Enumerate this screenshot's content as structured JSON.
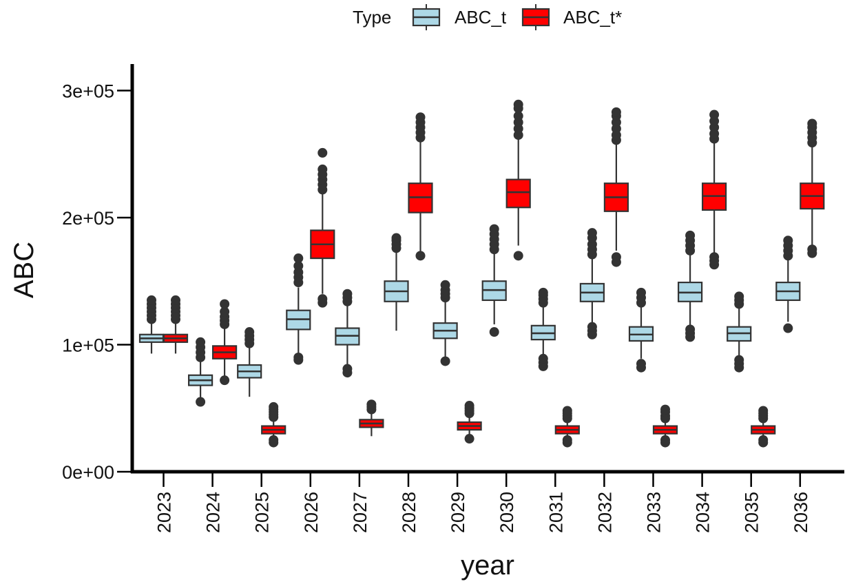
{
  "chart_data": {
    "type": "boxplot",
    "title": "",
    "xlabel": "year",
    "ylabel": "ABC",
    "ylim": [
      0,
      310000
    ],
    "y_ticks": [
      0,
      100000,
      200000,
      300000
    ],
    "y_tick_labels": [
      "0e+00",
      "1e+05",
      "2e+05",
      "3e+05"
    ],
    "categories": [
      "2023",
      "2024",
      "2025",
      "2026",
      "2027",
      "2028",
      "2029",
      "2030",
      "2031",
      "2032",
      "2033",
      "2034",
      "2035",
      "2036"
    ],
    "legend": {
      "title": "Type",
      "position": "top"
    },
    "series": [
      {
        "name": "ABC_t",
        "color": "#add8e6",
        "boxes": [
          {
            "x": "2023",
            "q1": 102000,
            "median": 105000,
            "q3": 108000,
            "whisker_low": 93000,
            "whisker_high": 117000,
            "outliers_low": [],
            "outliers_high": [
              120000,
              123000,
              126000,
              129000,
              132000,
              135000
            ]
          },
          {
            "x": "2024",
            "q1": 68000,
            "median": 72000,
            "q3": 76000,
            "whisker_low": 58000,
            "whisker_high": 88000,
            "outliers_low": [
              55000
            ],
            "outliers_high": [
              90000,
              94000,
              98000,
              102000
            ]
          },
          {
            "x": "2025",
            "q1": 74000,
            "median": 79000,
            "q3": 84000,
            "whisker_low": 59000,
            "whisker_high": 98000,
            "outliers_low": [],
            "outliers_high": [
              101000,
              104000,
              107000,
              110000
            ]
          },
          {
            "x": "2026",
            "q1": 112000,
            "median": 120000,
            "q3": 127000,
            "whisker_low": 93000,
            "whisker_high": 145000,
            "outliers_low": [
              88000,
              90000
            ],
            "outliers_high": [
              149000,
              153000,
              157000,
              162000,
              168000
            ]
          },
          {
            "x": "2027",
            "q1": 100000,
            "median": 107000,
            "q3": 113000,
            "whisker_low": 84000,
            "whisker_high": 131000,
            "outliers_low": [
              78000,
              81000
            ],
            "outliers_high": [
              134000,
              137000,
              140000
            ]
          },
          {
            "x": "2028",
            "q1": 134000,
            "median": 142000,
            "q3": 150000,
            "whisker_low": 111000,
            "whisker_high": 173000,
            "outliers_low": [],
            "outliers_high": [
              176000,
              179000,
              182000,
              184000
            ]
          },
          {
            "x": "2029",
            "q1": 105000,
            "median": 111000,
            "q3": 117000,
            "whisker_low": 90000,
            "whisker_high": 134000,
            "outliers_low": [
              87000
            ],
            "outliers_high": [
              137000,
              140000,
              143000,
              147000
            ]
          },
          {
            "x": "2030",
            "q1": 135000,
            "median": 143000,
            "q3": 150000,
            "whisker_low": 116000,
            "whisker_high": 172000,
            "outliers_low": [
              110000
            ],
            "outliers_high": [
              175000,
              179000,
              183000,
              187000,
              191000
            ]
          },
          {
            "x": "2031",
            "q1": 104000,
            "median": 109000,
            "q3": 115000,
            "whisker_low": 90000,
            "whisker_high": 130000,
            "outliers_low": [
              83000,
              86000,
              89000
            ],
            "outliers_high": [
              133000,
              136000,
              139000,
              141000
            ]
          },
          {
            "x": "2032",
            "q1": 134000,
            "median": 141000,
            "q3": 148000,
            "whisker_low": 116000,
            "whisker_high": 168000,
            "outliers_low": [
              108000,
              111000,
              114000
            ],
            "outliers_high": [
              171000,
              175000,
              179000,
              184000,
              188000
            ]
          },
          {
            "x": "2033",
            "q1": 103000,
            "median": 108000,
            "q3": 114000,
            "whisker_low": 89000,
            "whisker_high": 130000,
            "outliers_low": [
              82000,
              85000
            ],
            "outliers_high": [
              133000,
              137000,
              141000
            ]
          },
          {
            "x": "2034",
            "q1": 134000,
            "median": 141000,
            "q3": 149000,
            "whisker_low": 114000,
            "whisker_high": 171000,
            "outliers_low": [
              106000,
              109000,
              112000
            ],
            "outliers_high": [
              174000,
              178000,
              182000,
              186000
            ]
          },
          {
            "x": "2035",
            "q1": 103000,
            "median": 109000,
            "q3": 114000,
            "whisker_low": 89000,
            "whisker_high": 130000,
            "outliers_low": [
              82000,
              85000,
              88000
            ],
            "outliers_high": [
              132000,
              135000,
              138000
            ]
          },
          {
            "x": "2036",
            "q1": 135000,
            "median": 142000,
            "q3": 149000,
            "whisker_low": 118000,
            "whisker_high": 167000,
            "outliers_low": [
              113000
            ],
            "outliers_high": [
              170000,
              174000,
              178000,
              182000
            ]
          }
        ]
      },
      {
        "name": "ABC_t*",
        "color": "#ff0000",
        "boxes": [
          {
            "x": "2023",
            "q1": 102000,
            "median": 105000,
            "q3": 108000,
            "whisker_low": 93000,
            "whisker_high": 117000,
            "outliers_low": [],
            "outliers_high": [
              120000,
              123000,
              126000,
              129000,
              132000,
              135000
            ]
          },
          {
            "x": "2024",
            "q1": 89000,
            "median": 94000,
            "q3": 99000,
            "whisker_low": 75000,
            "whisker_high": 113000,
            "outliers_low": [
              72000
            ],
            "outliers_high": [
              116000,
              119000,
              122000,
              126000,
              132000
            ]
          },
          {
            "x": "2025",
            "q1": 30000,
            "median": 33000,
            "q3": 36000,
            "whisker_low": 27000,
            "whisker_high": 41000,
            "outliers_low": [
              23000,
              25000
            ],
            "outliers_high": [
              43000,
              45000,
              47000,
              49000,
              51000
            ]
          },
          {
            "x": "2026",
            "q1": 168000,
            "median": 179000,
            "q3": 190000,
            "whisker_low": 140000,
            "whisker_high": 219000,
            "outliers_low": [
              133000,
              136000
            ],
            "outliers_high": [
              222000,
              226000,
              230000,
              234000,
              238000,
              251000
            ]
          },
          {
            "x": "2027",
            "q1": 35000,
            "median": 38000,
            "q3": 41000,
            "whisker_low": 28000,
            "whisker_high": 47000,
            "outliers_low": [],
            "outliers_high": [
              49000,
              51000,
              53000
            ]
          },
          {
            "x": "2028",
            "q1": 204000,
            "median": 216000,
            "q3": 227000,
            "whisker_low": 172000,
            "whisker_high": 260000,
            "outliers_low": [
              170000
            ],
            "outliers_high": [
              263000,
              267000,
              271000,
              275000,
              279000
            ]
          },
          {
            "x": "2029",
            "q1": 33000,
            "median": 36000,
            "q3": 39000,
            "whisker_low": 29000,
            "whisker_high": 44000,
            "outliers_low": [
              26000
            ],
            "outliers_high": [
              46000,
              48000,
              50000,
              52000
            ]
          },
          {
            "x": "2030",
            "q1": 208000,
            "median": 220000,
            "q3": 230000,
            "whisker_low": 178000,
            "whisker_high": 262000,
            "outliers_low": [
              170000
            ],
            "outliers_high": [
              265000,
              270000,
              275000,
              280000,
              286000,
              289000
            ]
          },
          {
            "x": "2031",
            "q1": 30000,
            "median": 33000,
            "q3": 36000,
            "whisker_low": 27000,
            "whisker_high": 40000,
            "outliers_low": [
              23000,
              25000
            ],
            "outliers_high": [
              42000,
              44000,
              46000,
              48000
            ]
          },
          {
            "x": "2032",
            "q1": 205000,
            "median": 216000,
            "q3": 227000,
            "whisker_low": 174000,
            "whisker_high": 258000,
            "outliers_low": [
              165000,
              169000
            ],
            "outliers_high": [
              261000,
              265000,
              270000,
              275000,
              280000,
              283000
            ]
          },
          {
            "x": "2033",
            "q1": 30000,
            "median": 33000,
            "q3": 36000,
            "whisker_low": 27000,
            "whisker_high": 40000,
            "outliers_low": [
              23000,
              25000
            ],
            "outliers_high": [
              42000,
              44000,
              47000,
              49000
            ]
          },
          {
            "x": "2034",
            "q1": 206000,
            "median": 217000,
            "q3": 227000,
            "whisker_low": 172000,
            "whisker_high": 259000,
            "outliers_low": [
              163000,
              166000,
              169000
            ],
            "outliers_high": [
              262000,
              266000,
              271000,
              276000,
              281000
            ]
          },
          {
            "x": "2035",
            "q1": 30000,
            "median": 33000,
            "q3": 36000,
            "whisker_low": 27000,
            "whisker_high": 40000,
            "outliers_low": [
              23000,
              25000
            ],
            "outliers_high": [
              42000,
              44000,
              46000,
              48000
            ]
          },
          {
            "x": "2036",
            "q1": 207000,
            "median": 217000,
            "q3": 227000,
            "whisker_low": 178000,
            "whisker_high": 256000,
            "outliers_low": [
              172000,
              175000
            ],
            "outliers_high": [
              259000,
              263000,
              267000,
              271000,
              274000
            ]
          }
        ]
      }
    ]
  }
}
